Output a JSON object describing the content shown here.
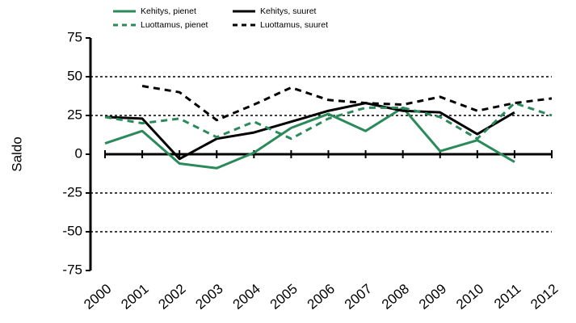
{
  "chart_data": {
    "type": "line",
    "y_label": "Saldo",
    "categories": [
      "2000",
      "2001",
      "2002",
      "2003",
      "2004",
      "2005",
      "2006",
      "2007",
      "2008",
      "2009",
      "2010",
      "2011",
      "2012"
    ],
    "series": [
      {
        "name": "Kehitys, pienet",
        "color": "#2a8a5a",
        "dashed": false,
        "values": [
          7,
          15,
          -6,
          -9,
          1,
          17,
          26,
          15,
          30,
          2,
          9,
          -5,
          null
        ]
      },
      {
        "name": "Kehitys, suuret",
        "color": "#000000",
        "dashed": false,
        "values": [
          24,
          23,
          -3,
          10,
          14,
          21,
          28,
          33,
          28,
          27,
          13,
          27,
          null
        ]
      },
      {
        "name": "Luottamus, pienet",
        "color": "#2a8a5a",
        "dashed": true,
        "values": [
          24,
          20,
          23,
          11,
          21,
          10,
          23,
          30,
          30,
          24,
          10,
          33,
          25
        ]
      },
      {
        "name": "Luottamus, suuret",
        "color": "#000000",
        "dashed": true,
        "values": [
          null,
          44,
          40,
          22,
          32,
          43,
          35,
          33,
          32,
          37,
          28,
          33,
          36
        ]
      }
    ],
    "ylim": [
      -75,
      75
    ],
    "yticks": [
      -75,
      -50,
      -25,
      0,
      25,
      50,
      75
    ],
    "grid": true,
    "legend": "top"
  }
}
